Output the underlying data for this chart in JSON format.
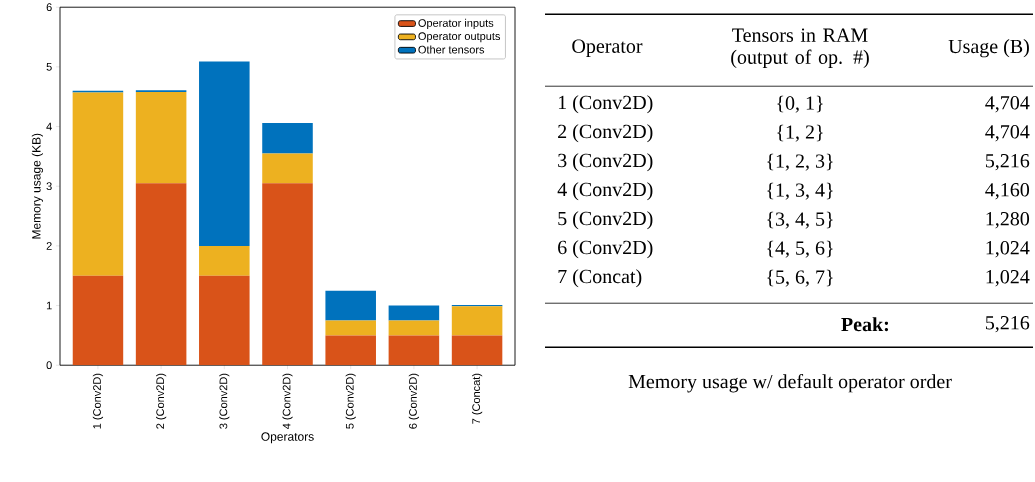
{
  "chart_data": [
    {
      "type": "bar",
      "stacked": true,
      "xlabel": "Operators",
      "ylabel": "Memory usage (KB)",
      "categories": [
        "1 (Conv2D)",
        "2 (Conv2D)",
        "3 (Conv2D)",
        "4 (Conv2D)",
        "5 (Conv2D)",
        "6 (Conv2D)",
        "7 (Concat)"
      ],
      "series": [
        {
          "name": "Operator inputs",
          "color": "#d95319",
          "values": [
            1.5,
            3.05,
            1.5,
            3.05,
            0.5,
            0.5,
            0.5
          ]
        },
        {
          "name": "Operator outputs",
          "color": "#edb120",
          "values": [
            3.07,
            1.53,
            0.5,
            0.5,
            0.25,
            0.25,
            0.49
          ]
        },
        {
          "name": "Other tensors",
          "color": "#0072bd",
          "values": [
            0.03,
            0.03,
            3.09,
            0.51,
            0.5,
            0.25,
            0.02
          ]
        }
      ],
      "ylim": [
        0,
        6
      ],
      "yticks": [
        0,
        1,
        2,
        3,
        4,
        5,
        6
      ],
      "legend": "top right",
      "grid": false
    },
    {
      "type": "other",
      "title": "Memory usage w/ default operator order",
      "categories": [
        "1 (Conv2D)",
        "2 (Conv2D)",
        "3 (Conv2D)",
        "4 (Conv2D)",
        "5 (Conv2D)",
        "6 (Conv2D)",
        "7 (Concat)"
      ],
      "value_labels": [
        "4,704",
        "4,704",
        "5,216",
        "4,160",
        "1,280",
        "1,024",
        "1,024"
      ],
      "data_labels": true,
      "annotations": [
        "Operator",
        "Tensors in RAM (output of op. #)",
        "Usage (B)",
        "{0, 1}",
        "{1, 2}",
        "{1, 2, 3}",
        "{1, 3, 4}",
        "{3, 4, 5}",
        "{4, 5, 6}",
        "{5, 6, 7}",
        "Peak:",
        "5,216"
      ]
    }
  ]
}
